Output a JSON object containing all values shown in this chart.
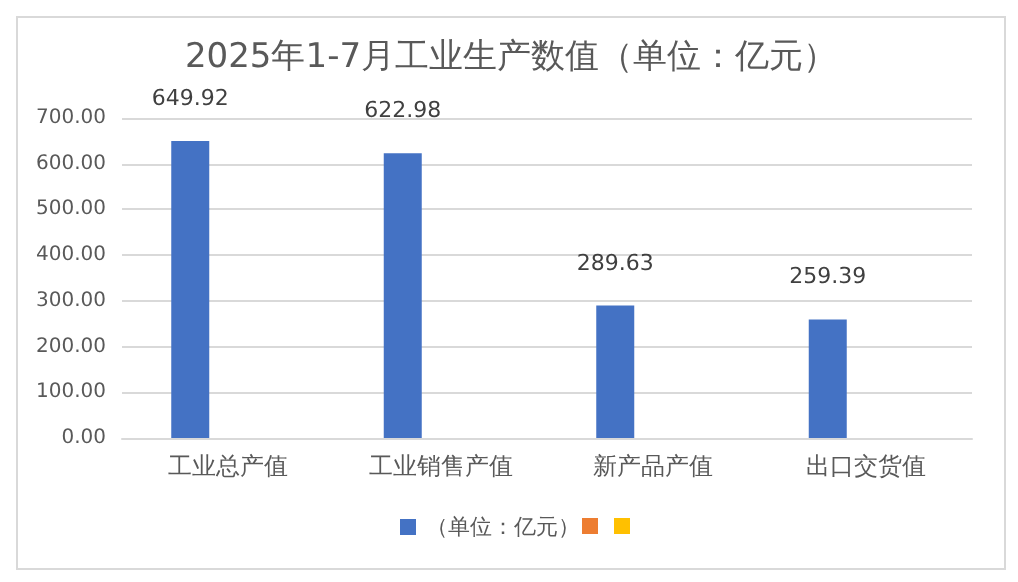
{
  "chart_data": {
    "type": "bar",
    "title": "2025年1-7月工业生产数值（单位：亿元）",
    "categories": [
      "工业总产值",
      "工业销售产值",
      "新产品产值",
      "出口交货值"
    ],
    "series": [
      {
        "name": "（单位：亿元）",
        "color": "#4472c4",
        "values": [
          649.92,
          622.98,
          289.63,
          259.39
        ]
      },
      {
        "color": "#ed7d31",
        "values": [
          null,
          null,
          null,
          null
        ]
      },
      {
        "color": "#ffc000",
        "values": [
          null,
          null,
          null,
          null
        ]
      }
    ],
    "ylim": [
      0,
      700
    ],
    "yticks": [
      {
        "value": 0,
        "label": "0.00"
      },
      {
        "value": 100,
        "label": "100.00"
      },
      {
        "value": 200,
        "label": "200.00"
      },
      {
        "value": 300,
        "label": "300.00"
      },
      {
        "value": 400,
        "label": "400.00"
      },
      {
        "value": 500,
        "label": "500.00"
      },
      {
        "value": 600,
        "label": "600.00"
      },
      {
        "value": 700,
        "label": "700.00"
      }
    ],
    "grid": "y",
    "legend": "bottom",
    "data_labels": true
  }
}
